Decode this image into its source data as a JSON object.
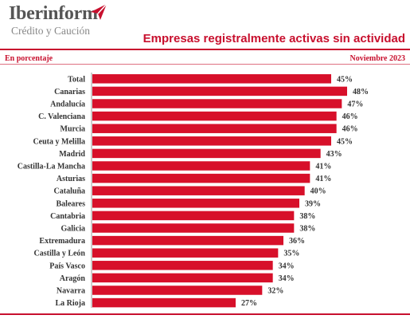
{
  "brand": {
    "name": "Iberinform",
    "tagline": "Crédito y Caución"
  },
  "header": {
    "unit": "En porcentaje",
    "date": "Noviembre 2023"
  },
  "colors": {
    "accent": "#c8102e",
    "bar": "#d7102a",
    "label": "#333333",
    "background": "#ffffff"
  },
  "chart_data": {
    "type": "bar",
    "orientation": "horizontal",
    "title": "Empresas registralmente activas sin actividad",
    "unit_suffix": "%",
    "categories": [
      "Total",
      "Canarias",
      "Andalucía",
      "C. Valenciana",
      "Murcia",
      "Ceuta y Melilla",
      "Madrid",
      "Castilla-La Mancha",
      "Asturias",
      "Cataluña",
      "Baleares",
      "Cantabria",
      "Galicia",
      "Extremadura",
      "Castilla y León",
      "País Vasco",
      "Aragón",
      "Navarra",
      "La Rioja"
    ],
    "values": [
      45,
      48,
      47,
      46,
      46,
      45,
      43,
      41,
      41,
      40,
      39,
      38,
      38,
      36,
      35,
      34,
      34,
      32,
      27
    ],
    "value_labels": [
      "45%",
      "48%",
      "47%",
      "46%",
      "46%",
      "45%",
      "43%",
      "41%",
      "41%",
      "40%",
      "39%",
      "38%",
      "38%",
      "36%",
      "35%",
      "34%",
      "34%",
      "32%",
      "27%"
    ],
    "grid": false,
    "legend": "none"
  }
}
